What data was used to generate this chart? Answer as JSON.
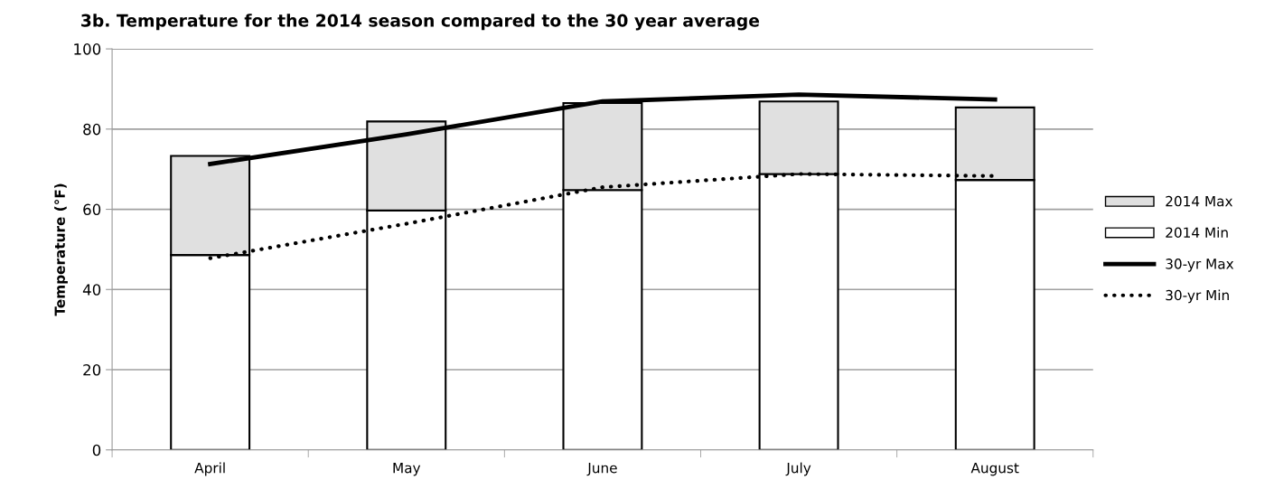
{
  "chart_data": {
    "type": "bar",
    "stacked": true,
    "title": "3b. Temperature for the 2014 season compared to the 30 year average",
    "ylabel": "Temperature (°F)",
    "categories": [
      "April",
      "May",
      "June",
      "July",
      "August"
    ],
    "series": [
      {
        "name": "2014 Min",
        "color": "#ffffff",
        "values": [
          48.6,
          59.7,
          64.8,
          68.8,
          67.3
        ]
      },
      {
        "name": "2014 Max",
        "color": "#e0e0e0",
        "values": [
          24.7,
          22.2,
          21.7,
          18.1,
          18.1
        ]
      },
      {
        "name": "30-yr Max",
        "type": "line",
        "color": "#000000",
        "line_style": "solid",
        "values": [
          71.3,
          78.7,
          86.9,
          88.6,
          87.4
        ]
      },
      {
        "name": "30-yr Min",
        "type": "line",
        "color": "#000000",
        "line_style": "dotted",
        "values": [
          47.8,
          56.4,
          65.5,
          68.8,
          68.3
        ]
      }
    ],
    "ylim": [
      0,
      100
    ],
    "yticks": [
      0,
      20,
      40,
      60,
      80,
      100
    ],
    "grid": "y",
    "legend": "right"
  }
}
